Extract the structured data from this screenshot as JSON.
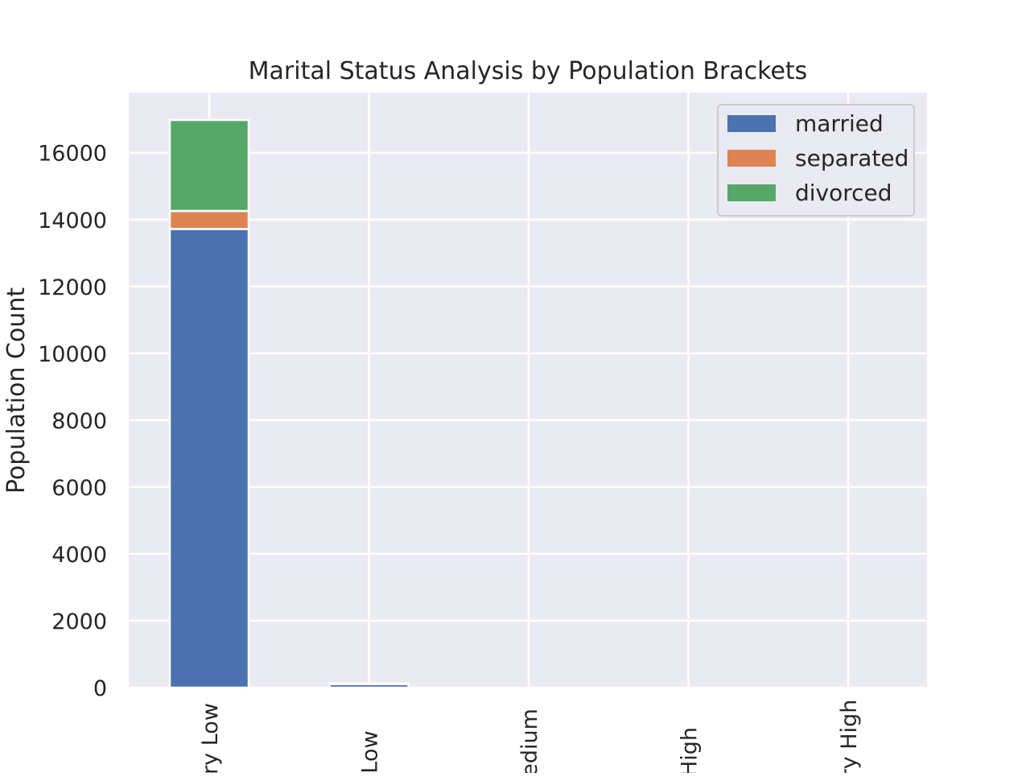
{
  "chart_data": {
    "type": "bar",
    "stacked": true,
    "title": "Marital Status Analysis by Population Brackets",
    "xlabel": "",
    "ylabel": "Population Count",
    "categories": [
      "Very Low",
      "Low",
      "Medium",
      "High",
      "Very High"
    ],
    "series": [
      {
        "name": "married",
        "color": "#4c72b0",
        "values": [
          13720,
          110,
          0,
          0,
          0
        ]
      },
      {
        "name": "separated",
        "color": "#dd8452",
        "values": [
          540,
          5,
          0,
          0,
          0
        ]
      },
      {
        "name": "divorced",
        "color": "#55a868",
        "values": [
          2720,
          15,
          0,
          0,
          0
        ]
      }
    ],
    "ylim": [
      0,
      17800
    ],
    "yticks": [
      0,
      2000,
      4000,
      6000,
      8000,
      10000,
      12000,
      14000,
      16000
    ],
    "grid": true,
    "legend_position": "top-right",
    "xtick_rotation": -90
  }
}
